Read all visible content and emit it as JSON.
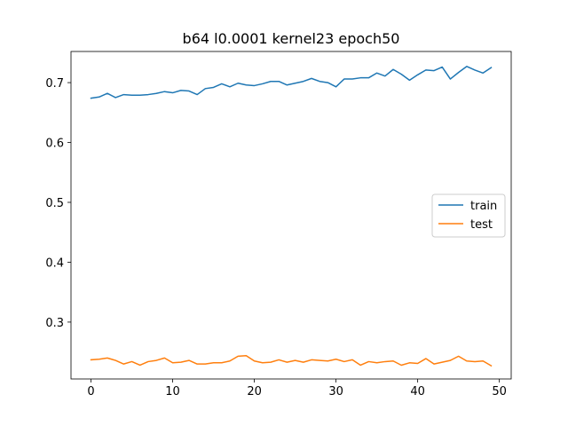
{
  "chart_data": {
    "type": "line",
    "title": "b64 l0.0001 kernel23 epoch50",
    "xlabel": "",
    "ylabel": "",
    "xlim": [
      -2.45,
      51.45
    ],
    "ylim": [
      0.205,
      0.752
    ],
    "x_ticks": [
      0,
      10,
      20,
      30,
      40,
      50
    ],
    "y_ticks": [
      0.3,
      0.4,
      0.5,
      0.6,
      0.7
    ],
    "grid": false,
    "legend_position": "center-right",
    "x": [
      0,
      1,
      2,
      3,
      4,
      5,
      6,
      7,
      8,
      9,
      10,
      11,
      12,
      13,
      14,
      15,
      16,
      17,
      18,
      19,
      20,
      21,
      22,
      23,
      24,
      25,
      26,
      27,
      28,
      29,
      30,
      31,
      32,
      33,
      34,
      35,
      36,
      37,
      38,
      39,
      40,
      41,
      42,
      43,
      44,
      45,
      46,
      47,
      48,
      49
    ],
    "series": [
      {
        "name": "train",
        "color": "#1f77b4",
        "values": [
          0.674,
          0.676,
          0.682,
          0.675,
          0.68,
          0.679,
          0.679,
          0.68,
          0.682,
          0.685,
          0.683,
          0.687,
          0.686,
          0.68,
          0.69,
          0.692,
          0.698,
          0.693,
          0.699,
          0.696,
          0.695,
          0.698,
          0.702,
          0.702,
          0.696,
          0.699,
          0.702,
          0.707,
          0.702,
          0.7,
          0.693,
          0.706,
          0.706,
          0.708,
          0.708,
          0.716,
          0.711,
          0.722,
          0.714,
          0.704,
          0.713,
          0.721,
          0.72,
          0.726,
          0.706,
          0.717,
          0.727,
          0.721,
          0.716,
          0.725
        ]
      },
      {
        "name": "test",
        "color": "#ff7f0e",
        "values": [
          0.237,
          0.238,
          0.24,
          0.236,
          0.23,
          0.234,
          0.228,
          0.234,
          0.236,
          0.24,
          0.232,
          0.233,
          0.236,
          0.23,
          0.23,
          0.232,
          0.232,
          0.235,
          0.243,
          0.244,
          0.235,
          0.232,
          0.233,
          0.237,
          0.233,
          0.236,
          0.233,
          0.237,
          0.236,
          0.235,
          0.238,
          0.234,
          0.237,
          0.228,
          0.234,
          0.232,
          0.234,
          0.235,
          0.228,
          0.232,
          0.231,
          0.239,
          0.23,
          0.233,
          0.236,
          0.243,
          0.235,
          0.234,
          0.235,
          0.227
        ]
      }
    ]
  }
}
